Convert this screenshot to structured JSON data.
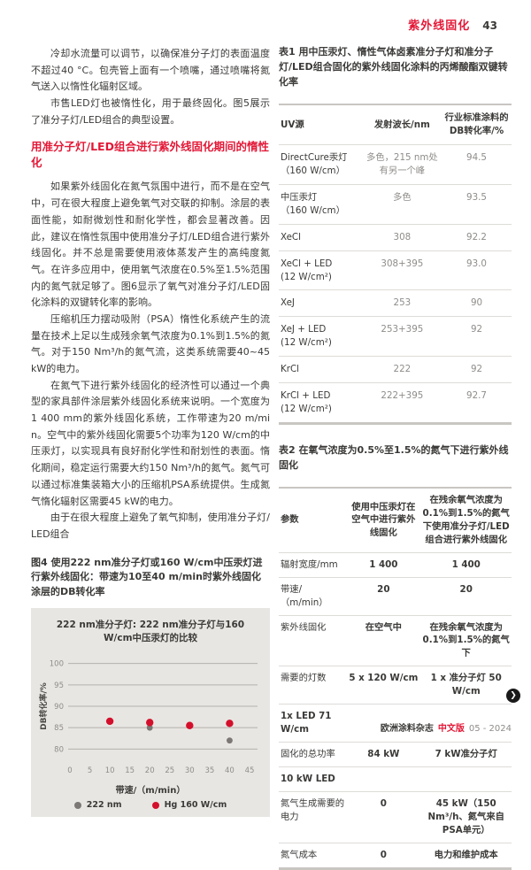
{
  "header": {
    "section": "紫外线固化",
    "page": "43"
  },
  "left": {
    "p1": "冷却水流量可以调节，以确保准分子灯的表面温度不超过40 °C。包壳管上面有一个喷嘴，通过喷嘴将氮气送入以惰性化辐射区域。",
    "p2": "市售LED灯也被惰性化，用于最终固化。图5展示了准分子灯/LED组合的典型设置。",
    "heading": "用准分子灯/LED组合进行紫外线固化期间的惰性化",
    "p3": "如果紫外线固化在氮气氛围中进行，而不是在空气中，可在很大程度上避免氧气对交联的抑制。涂层的表面性能，如耐微划性和耐化学性，都会显著改善。因此，建议在惰性氛围中使用准分子灯/LED组合进行紫外线固化。并不总是需要使用液体蒸发产生的高纯度氮气。在许多应用中，使用氧气浓度在0.5%至1.5%范围内的氮气就足够了。图6显示了氧气对准分子灯/LED固化涂料的双键转化率的影响。",
    "p4": "压缩机压力摆动吸附（PSA）惰性化系统产生的流量在技术上足以生成残余氧气浓度为0.1%到1.5%的氮气。对于150 Nm³/h的氮气流，这类系统需要40~45 kW的电力。",
    "p5": "在氮气下进行紫外线固化的经济性可以通过一个典型的家具部件涂层紫外线固化系统来说明。一个宽度为1 400 mm的紫外线固化系统，工作带速为20 m/min。空气中的紫外线固化需要5个功率为120 W/cm的中压汞灯，以实现具有良好耐化学性和耐划性的表面。惰化期间，稳定运行需要大约150 Nm³/h的氮气。氮气可以通过标准集装箱大小的压缩机PSA系统提供。生成氮气惰化辐射区需要45 kW的电力。",
    "p6": "由于在很大程度上避免了氧气抑制，使用准分子灯/LED组合",
    "fig4_caption": "图4 使用222 nm准分子灯或160 W/cm中压汞灯进行紫外线固化：带速为10至40 m/min时紫外线固化涂层的DB转化率"
  },
  "chart_data": {
    "type": "scatter",
    "title": "222 nm准分子灯: 222 nm准分子灯与160 W/cm中压汞灯的比较",
    "xlabel": "带速/（m/min）",
    "ylabel": "DB转化率/%",
    "xlim": [
      0,
      47
    ],
    "ylim": [
      78,
      102
    ],
    "xticks": [
      0,
      5,
      10,
      15,
      20,
      25,
      30,
      35,
      40,
      45
    ],
    "yticks": [
      80,
      85,
      90,
      95,
      100
    ],
    "grid": "horizontal",
    "legend_position": "bottom",
    "background": "#e8e6e2",
    "grid_color": "#b5b1ac",
    "series": [
      {
        "name": "222 nm",
        "color": "#7b7875",
        "points": [
          [
            20,
            85
          ],
          [
            40,
            82
          ]
        ]
      },
      {
        "name": "Hg 160 W/cm",
        "color": "#d40f2c",
        "points": [
          [
            10,
            86.5
          ],
          [
            20,
            86.2
          ],
          [
            30,
            85.5
          ],
          [
            40,
            86
          ]
        ]
      }
    ]
  },
  "table1": {
    "caption": "表1 用中压汞灯、惰性气体卤素准分子灯和准分子灯/LED组合固化的紫外线固化涂料的丙烯酸酯双键转化率",
    "headers": [
      "UV源",
      "发射波长/nm",
      "行业标准涂料的DB转化率/%"
    ],
    "rows": [
      [
        "DirectCure汞灯\n（160 W/cm）",
        "多色，215 nm处有另一个峰",
        "94.5"
      ],
      [
        "中压汞灯\n（160 W/cm）",
        "多色",
        "93.5"
      ],
      [
        "XeCl",
        "308",
        "92.2"
      ],
      [
        "XeCl + LED\n(12 W/cm²)",
        "308+395",
        "93.0"
      ],
      [
        "XeJ",
        "253",
        "90"
      ],
      [
        "XeJ + LED\n(12 W/cm²)",
        "253+395",
        "92"
      ],
      [
        "KrCl",
        "222",
        "92"
      ],
      [
        "KrCl + LED\n(12 W/cm²)",
        "222+395",
        "92.7"
      ]
    ]
  },
  "table2": {
    "caption": "表2 在氧气浓度为0.5%至1.5%的氮气下进行紫外线固化",
    "headers": [
      "参数",
      "使用中压汞灯在空气中进行紫外线固化",
      "在残余氧气浓度为0.1%到1.5%的氮气下使用准分子灯/LED组合进行紫外线固化"
    ],
    "rows": [
      [
        "辐射宽度/mm",
        "1 400",
        "1 400"
      ],
      [
        "带速/（m/min）",
        "20",
        "20"
      ],
      [
        "紫外线固化",
        "在空气中",
        "在残余氧气浓度为0.1%到1.5%的氮气下"
      ],
      [
        "需要的灯数",
        "5 x 120 W/cm",
        "1 x 准分子灯 50 W/cm"
      ],
      [
        "1x LED  71 W/cm",
        "",
        ""
      ],
      [
        "固化的总功率",
        "84 kW",
        "7 kW准分子灯"
      ],
      [
        "10 kW LED",
        "",
        ""
      ],
      [
        "氮气生成需要的电力",
        "0",
        "45 kW（150 Nm³/h、氮气来自PSA单元）"
      ],
      [
        "氮气成本",
        "0",
        "电力和维护成本"
      ]
    ]
  },
  "next_icon": "❯",
  "footer": {
    "journal": "欧洲涂料杂志",
    "edition": "中文版",
    "issue": "05 - 2024"
  }
}
